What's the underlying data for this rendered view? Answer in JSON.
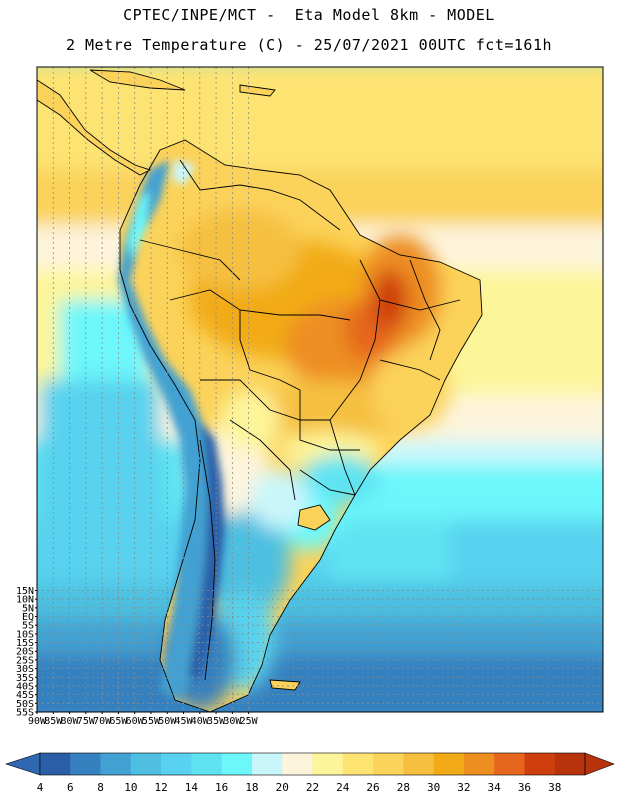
{
  "header": {
    "line1": "CPTEC/INPE/MCT -  Eta Model 8km - MODEL",
    "line2": "2 Metre Temperature (C) - 25/07/2021 00UTC fct=161h"
  },
  "map": {
    "lat_labels": [
      "15N",
      "10N",
      "5N",
      "EQ",
      "5S",
      "10S",
      "15S",
      "20S",
      "25S",
      "30S",
      "35S",
      "40S",
      "45S",
      "50S",
      "55S"
    ],
    "lon_labels": [
      "90W",
      "85W",
      "80W",
      "75W",
      "70W",
      "65W",
      "60W",
      "55W",
      "50W",
      "45W",
      "40W",
      "35W",
      "30W",
      "25W"
    ],
    "lat_range": [
      -55,
      19
    ],
    "lon_range": [
      -90,
      -20
    ],
    "grid": "dotted"
  },
  "colorbar": {
    "levels": [
      "4",
      "6",
      "8",
      "10",
      "12",
      "14",
      "16",
      "18",
      "20",
      "22",
      "24",
      "26",
      "28",
      "30",
      "32",
      "34",
      "36",
      "38"
    ],
    "colors": [
      "#2a5fa8",
      "#3580bf",
      "#42a1d2",
      "#4ebfe0",
      "#58d2ee",
      "#5ee3f2",
      "#6cf7fb",
      "#c9f6fb",
      "#fdf4dc",
      "#fdf59a",
      "#fde372",
      "#fbd25a",
      "#f5c040",
      "#f2ab17",
      "#ed8e20",
      "#e5661c",
      "#cf3f0e",
      "#b8330c"
    ],
    "min_arrow_color": "#2f67b0",
    "max_arrow_color": "#b8330c"
  }
}
